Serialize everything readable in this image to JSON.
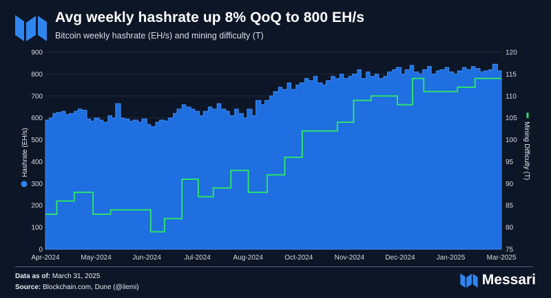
{
  "header": {
    "title": "Avg weekly hashrate up 8% QoQ to 800 EH/s",
    "subtitle": "Bitcoin weekly hashrate (EH/s) and mining difficulty (T)"
  },
  "footer": {
    "data_as_of_label": "Data as of:",
    "data_as_of_value": "March 31, 2025",
    "source_label": "Source:",
    "source_value": "Blockchain.com, Dune (@ilemi)",
    "brand": "Messari"
  },
  "colors": {
    "hashrate": "#1f6fe0",
    "difficulty": "#2ee06e",
    "background": "#0d1626"
  },
  "chart_data": {
    "type": "area",
    "x_tick_labels": [
      "Apr-2024",
      "May-2024",
      "Jun-2024",
      "Jul-2024",
      "Aug-2024",
      "Oct-2024",
      "Nov-2024",
      "Dec-2024",
      "Jan-2025",
      "Mar-2025"
    ],
    "x_range": [
      "2024-04-01",
      "2025-03-31"
    ],
    "y_left": {
      "label": "Hashrate (EH/s)",
      "range": [
        0,
        900
      ],
      "ticks": [
        0,
        100,
        200,
        300,
        400,
        500,
        600,
        700,
        800,
        900
      ]
    },
    "y_right": {
      "label": "Mining Difficulty (T)",
      "range": [
        75,
        120
      ],
      "ticks": [
        75,
        80,
        85,
        90,
        95,
        100,
        105,
        110,
        115,
        120
      ]
    },
    "legend": {
      "hashrate_icon": "blue-dot",
      "difficulty_icon": "green-line"
    },
    "grid": true,
    "series": [
      {
        "name": "Hashrate (EH/s)",
        "axis": "left",
        "style": "area",
        "x": [
          "2024-04-01",
          "2024-04-04",
          "2024-04-07",
          "2024-04-10",
          "2024-04-14",
          "2024-04-17",
          "2024-04-20",
          "2024-04-24",
          "2024-04-27",
          "2024-04-30",
          "2024-05-04",
          "2024-05-07",
          "2024-05-10",
          "2024-05-14",
          "2024-05-17",
          "2024-05-21",
          "2024-05-24",
          "2024-05-27",
          "2024-05-31",
          "2024-06-03",
          "2024-06-07",
          "2024-06-10",
          "2024-06-14",
          "2024-06-17",
          "2024-06-21",
          "2024-06-24",
          "2024-06-28",
          "2024-07-01",
          "2024-07-05",
          "2024-07-08",
          "2024-07-12",
          "2024-07-15",
          "2024-07-19",
          "2024-07-22",
          "2024-07-26",
          "2024-07-29",
          "2024-08-02",
          "2024-08-05",
          "2024-08-09",
          "2024-08-12",
          "2024-08-16",
          "2024-08-19",
          "2024-08-23",
          "2024-08-26",
          "2024-08-30",
          "2024-09-02",
          "2024-09-06",
          "2024-09-09",
          "2024-09-13",
          "2024-09-16",
          "2024-09-20",
          "2024-09-23",
          "2024-09-27",
          "2024-09-30",
          "2024-10-04",
          "2024-10-07",
          "2024-10-11",
          "2024-10-14",
          "2024-10-18",
          "2024-10-21",
          "2024-10-25",
          "2024-10-28",
          "2024-11-01",
          "2024-11-04",
          "2024-11-08",
          "2024-11-11",
          "2024-11-15",
          "2024-11-18",
          "2024-11-22",
          "2024-11-25",
          "2024-11-29",
          "2024-12-02",
          "2024-12-06",
          "2024-12-09",
          "2024-12-13",
          "2024-12-16",
          "2024-12-20",
          "2024-12-23",
          "2024-12-27",
          "2024-12-30",
          "2025-01-03",
          "2025-01-06",
          "2025-01-10",
          "2025-01-13",
          "2025-01-17",
          "2025-01-20",
          "2025-01-24",
          "2025-01-27",
          "2025-01-31",
          "2025-02-03",
          "2025-02-07",
          "2025-02-10",
          "2025-02-14",
          "2025-02-17",
          "2025-02-21",
          "2025-02-24",
          "2025-02-28",
          "2025-03-03",
          "2025-03-07",
          "2025-03-10",
          "2025-03-14",
          "2025-03-17",
          "2025-03-21",
          "2025-03-24",
          "2025-03-28",
          "2025-03-31"
        ],
        "values": [
          590,
          600,
          620,
          625,
          630,
          615,
          620,
          630,
          640,
          635,
          595,
          585,
          600,
          590,
          580,
          610,
          600,
          665,
          600,
          595,
          585,
          590,
          580,
          595,
          570,
          560,
          580,
          590,
          585,
          600,
          620,
          640,
          660,
          650,
          640,
          630,
          610,
          630,
          650,
          640,
          665,
          640,
          630,
          610,
          640,
          620,
          600,
          640,
          610,
          680,
          660,
          680,
          700,
          720,
          740,
          730,
          760,
          730,
          750,
          760,
          780,
          770,
          790,
          760,
          750,
          770,
          790,
          780,
          800,
          780,
          790,
          800,
          820,
          780,
          810,
          790,
          800,
          780,
          790,
          810,
          820,
          830,
          800,
          820,
          840,
          810,
          800,
          820,
          835,
          800,
          815,
          820,
          830,
          810,
          800,
          815,
          830,
          820,
          835,
          825,
          810,
          815,
          820,
          845,
          815,
          810
        ]
      },
      {
        "name": "Mining Difficulty (T)",
        "axis": "right",
        "style": "step",
        "x": [
          "2024-04-01",
          "2024-04-10",
          "2024-04-24",
          "2024-05-09",
          "2024-05-23",
          "2024-06-24",
          "2024-07-05",
          "2024-07-19",
          "2024-08-01",
          "2024-08-13",
          "2024-08-27",
          "2024-09-10",
          "2024-09-25",
          "2024-10-09",
          "2024-10-23",
          "2024-11-20",
          "2024-12-03",
          "2024-12-17",
          "2025-01-07",
          "2025-01-19",
          "2025-01-28",
          "2025-02-24",
          "2025-03-10"
        ],
        "values": [
          83,
          86,
          88,
          83,
          84,
          79,
          82,
          91,
          87,
          89,
          93,
          88,
          92,
          96,
          102,
          104,
          109,
          110,
          108,
          114,
          111,
          112,
          114
        ]
      }
    ]
  }
}
